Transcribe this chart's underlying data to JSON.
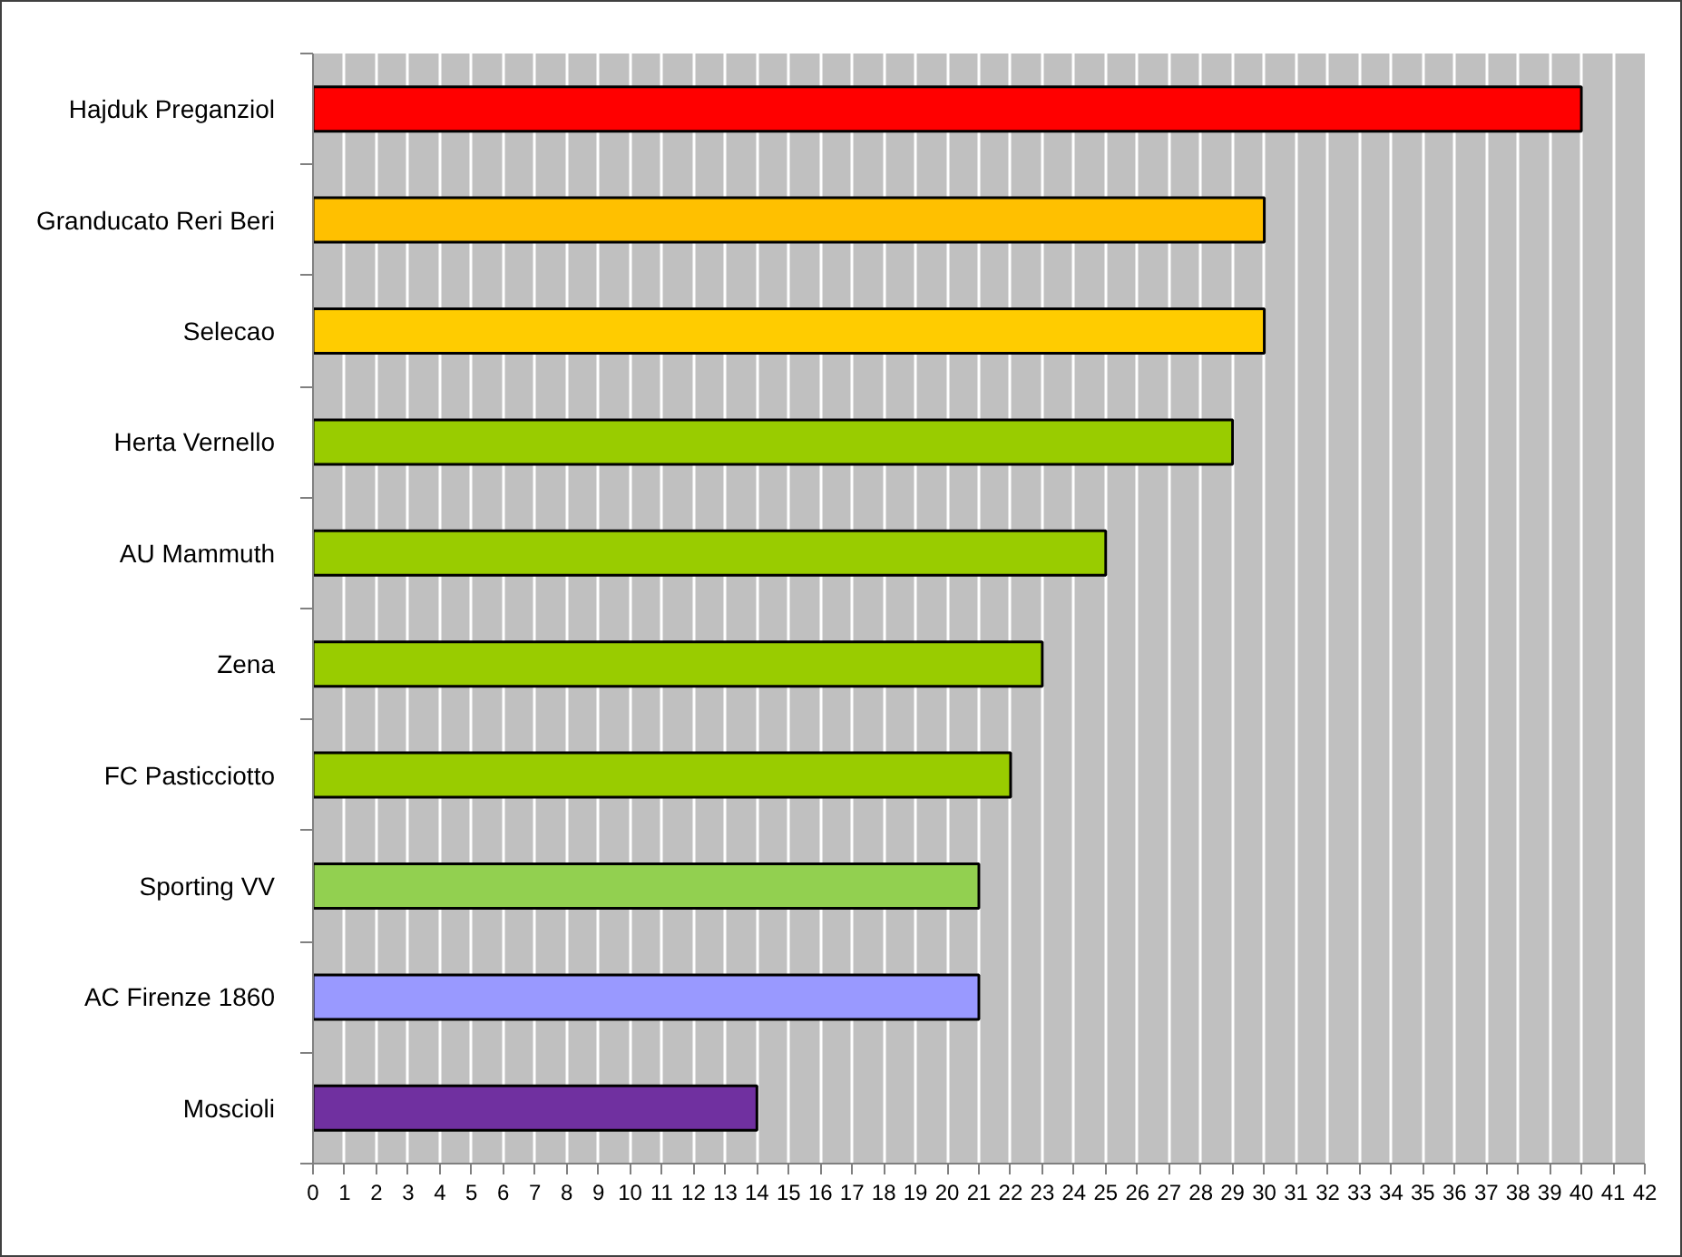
{
  "chart_data": {
    "type": "bar",
    "orientation": "horizontal",
    "categories": [
      "Hajduk Preganziol",
      "Granducato Reri Beri",
      "Selecao",
      "Herta Vernello",
      "AU Mammuth",
      "Zena",
      "FC Pasticciotto",
      "Sporting VV",
      "AC Firenze 1860",
      "Moscioli"
    ],
    "values": [
      40,
      30,
      30,
      29,
      25,
      23,
      22,
      21,
      21,
      14
    ],
    "colors": [
      "#ff0000",
      "#ffc000",
      "#ffcc00",
      "#99cc00",
      "#99cc00",
      "#99cc00",
      "#99cc00",
      "#92d050",
      "#9999ff",
      "#7030a0"
    ],
    "xlim": [
      0,
      42
    ],
    "xticks": [
      0,
      1,
      2,
      3,
      4,
      5,
      6,
      7,
      8,
      9,
      10,
      11,
      12,
      13,
      14,
      15,
      16,
      17,
      18,
      19,
      20,
      21,
      22,
      23,
      24,
      25,
      26,
      27,
      28,
      29,
      30,
      31,
      32,
      33,
      34,
      35,
      36,
      37,
      38,
      39,
      40,
      41,
      42
    ],
    "grid": "x"
  }
}
